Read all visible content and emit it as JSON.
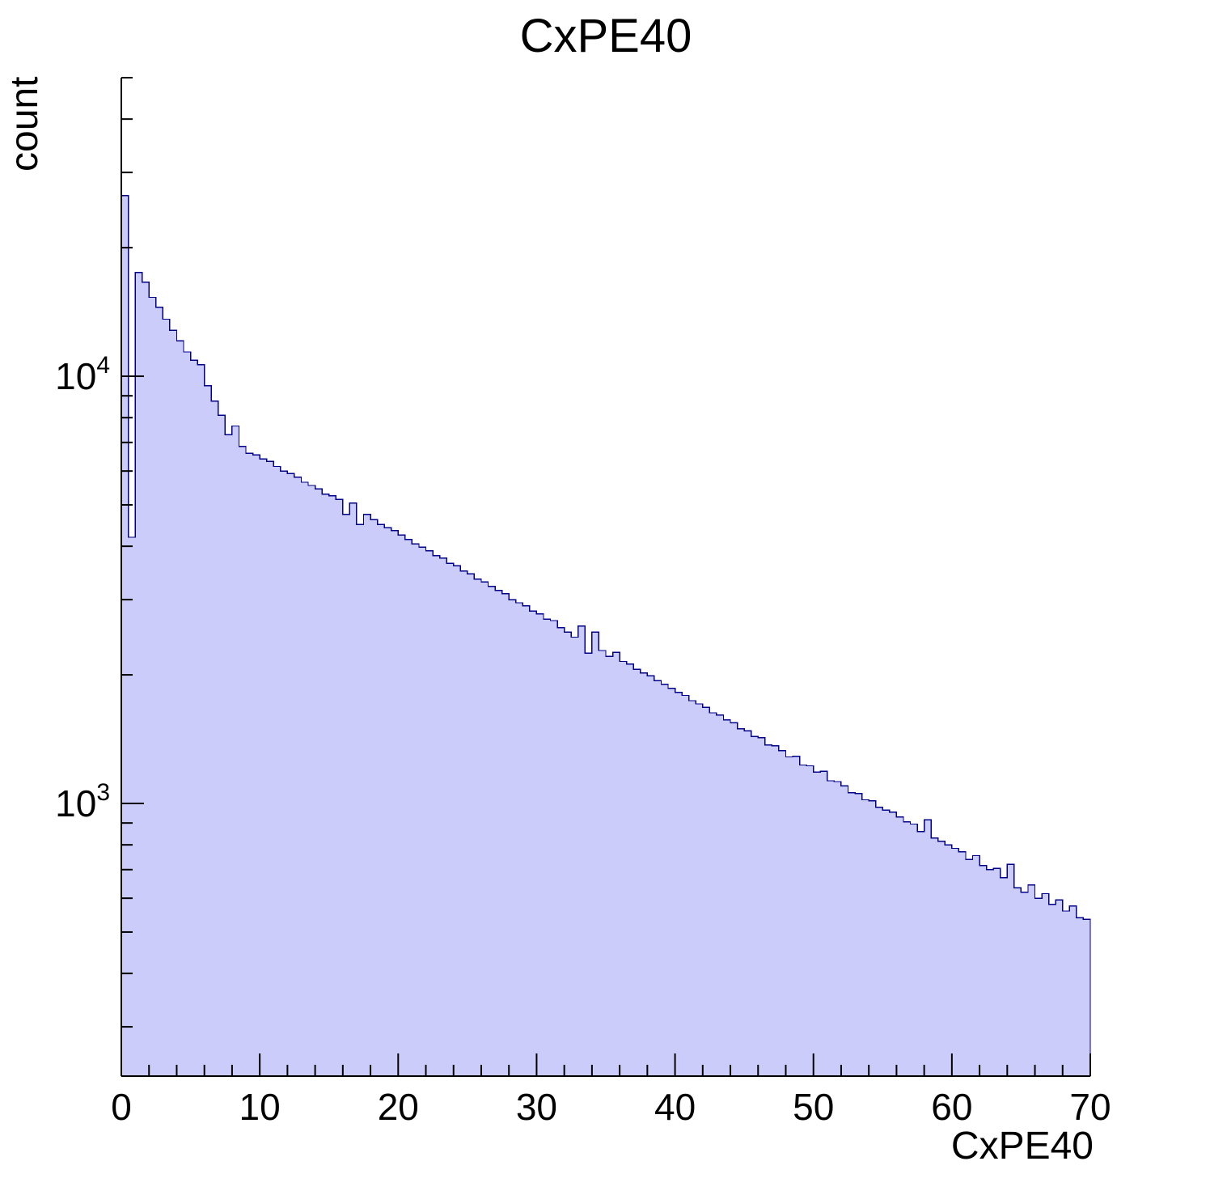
{
  "chart_data": {
    "type": "bar",
    "subtype": "histogram-log-y",
    "title": "CxPE40",
    "xlabel": "CxPE40",
    "ylabel": "count",
    "x_range": [
      0,
      70
    ],
    "y_range": [
      230,
      50000
    ],
    "y_scale": "log",
    "grid": false,
    "legend": "none",
    "bin_start": 0,
    "bin_width": 0.5,
    "values": [
      26500,
      4200,
      17500,
      16600,
      15300,
      14500,
      13600,
      12800,
      12100,
      11400,
      10900,
      10650,
      9500,
      8750,
      8100,
      7300,
      7650,
      6850,
      6600,
      6550,
      6400,
      6320,
      6150,
      6000,
      5920,
      5800,
      5650,
      5550,
      5450,
      5300,
      5250,
      5150,
      4750,
      5050,
      4500,
      4750,
      4620,
      4500,
      4420,
      4350,
      4250,
      4150,
      4050,
      3980,
      3900,
      3800,
      3750,
      3650,
      3600,
      3500,
      3450,
      3350,
      3300,
      3220,
      3150,
      3100,
      3000,
      2950,
      2900,
      2820,
      2780,
      2700,
      2680,
      2580,
      2520,
      2450,
      2600,
      2250,
      2520,
      2280,
      2210,
      2260,
      2150,
      2120,
      2060,
      2020,
      1990,
      1940,
      1900,
      1860,
      1820,
      1790,
      1740,
      1710,
      1680,
      1630,
      1610,
      1570,
      1545,
      1495,
      1480,
      1435,
      1425,
      1370,
      1365,
      1330,
      1285,
      1290,
      1230,
      1225,
      1185,
      1190,
      1130,
      1125,
      1100,
      1060,
      1055,
      1020,
      1015,
      980,
      965,
      955,
      930,
      905,
      895,
      860,
      915,
      830,
      815,
      800,
      785,
      770,
      740,
      755,
      715,
      700,
      705,
      670,
      720,
      635,
      620,
      645,
      600,
      615,
      580,
      595,
      560,
      575,
      540,
      535
    ],
    "x_ticks": [
      {
        "value": 0,
        "label": "0"
      },
      {
        "value": 10,
        "label": "10"
      },
      {
        "value": 20,
        "label": "20"
      },
      {
        "value": 30,
        "label": "30"
      },
      {
        "value": 40,
        "label": "40"
      },
      {
        "value": 50,
        "label": "50"
      },
      {
        "value": 60,
        "label": "60"
      },
      {
        "value": 70,
        "label": "70"
      }
    ],
    "x_minor_step": 2,
    "y_ticks": [
      {
        "value": 1000,
        "base": "10",
        "exp": "3"
      },
      {
        "value": 10000,
        "base": "10",
        "exp": "4"
      }
    ],
    "style": {
      "fill_color": "#ccccfa",
      "line_color": "#00008b",
      "axis_color": "#000000",
      "background": "#ffffff"
    }
  }
}
